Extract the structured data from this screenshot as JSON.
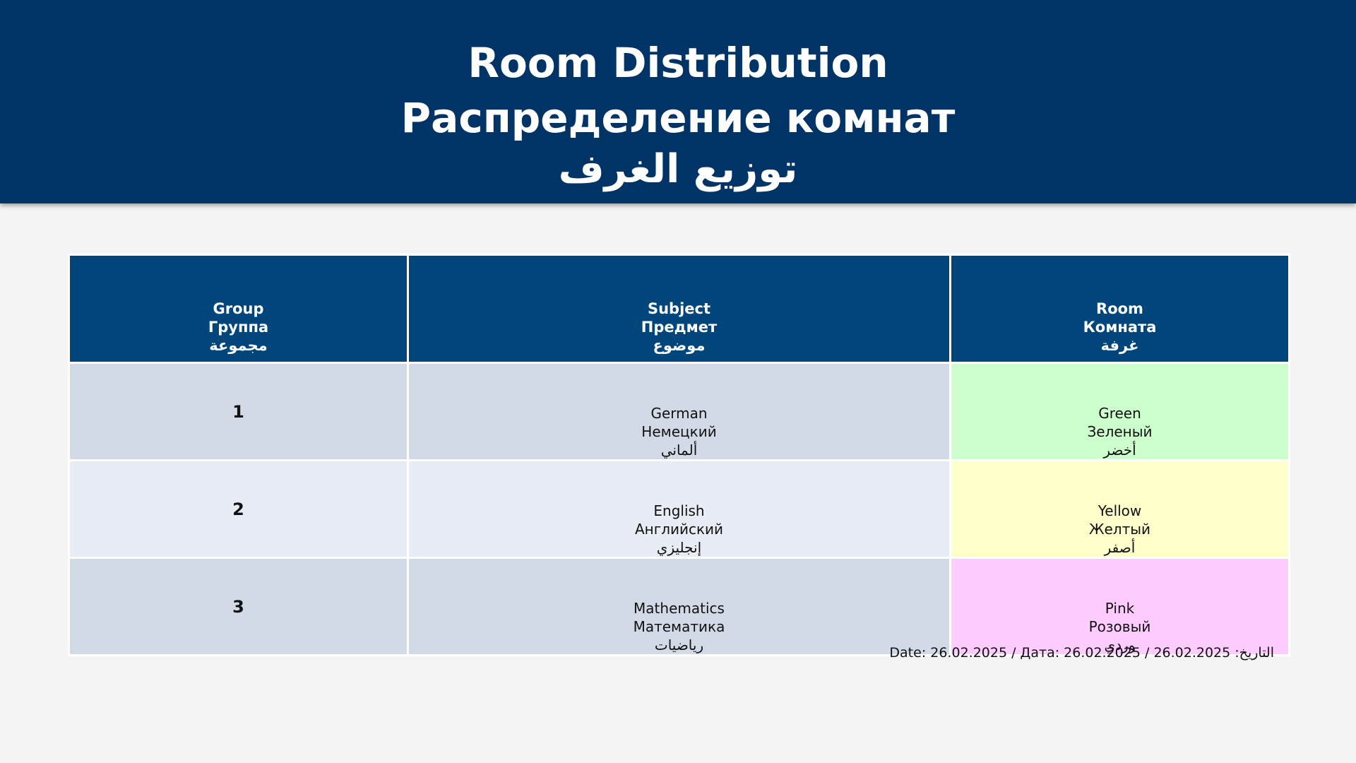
{
  "title": {
    "line_en": "Room Distribution",
    "line_ru": "Распределение комнат",
    "line_ar": "توزيع الغرف"
  },
  "table": {
    "headers": [
      {
        "en": "Group",
        "ru": "Группа",
        "ar": "مجموعة"
      },
      {
        "en": "Subject",
        "ru": "Предмет",
        "ar": "موضوع"
      },
      {
        "en": "Room",
        "ru": "Комната",
        "ar": "غرفة"
      }
    ],
    "rows": [
      {
        "group": "1",
        "subject": {
          "en": "German",
          "ru": "Немецкий",
          "ar": "ألماني"
        },
        "room": {
          "en": "Green",
          "ru": "Зеленый",
          "ar": "أخضر",
          "color": "#ccffcc"
        }
      },
      {
        "group": "2",
        "subject": {
          "en": "English",
          "ru": "Английский",
          "ar": "إنجليزي"
        },
        "room": {
          "en": "Yellow",
          "ru": "Желтый",
          "ar": "أصفر",
          "color": "#ffffcc"
        }
      },
      {
        "group": "3",
        "subject": {
          "en": "Mathematics",
          "ru": "Математика",
          "ar": "رياضيات"
        },
        "room": {
          "en": "Pink",
          "ru": "Розовый",
          "ar": "وردي",
          "color": "#ffccff"
        }
      }
    ]
  },
  "footer": {
    "date_text": "Date: 26.02.2025 / Дата: 26.02.2025 / التاريخ: 26.02.2025"
  },
  "colors": {
    "header_bg": "#003366",
    "table_header_bg": "#00467a",
    "row_odd_bg": "#d2d9e7",
    "row_even_bg": "#e8ecf4",
    "page_bg": "#f4f4f4"
  }
}
